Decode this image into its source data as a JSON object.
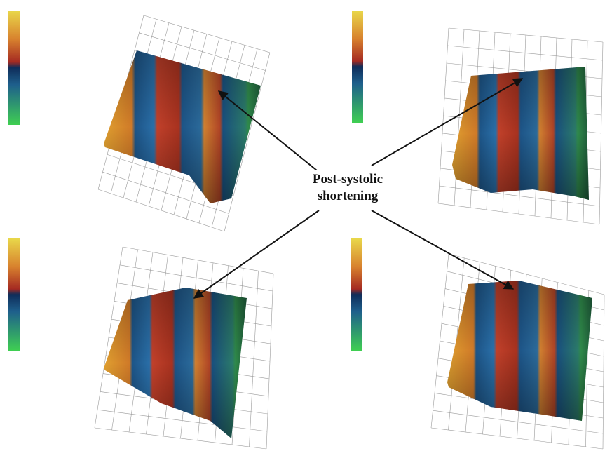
{
  "annotation": {
    "lines": [
      "Post-systolic",
      "shortening"
    ]
  }
}
